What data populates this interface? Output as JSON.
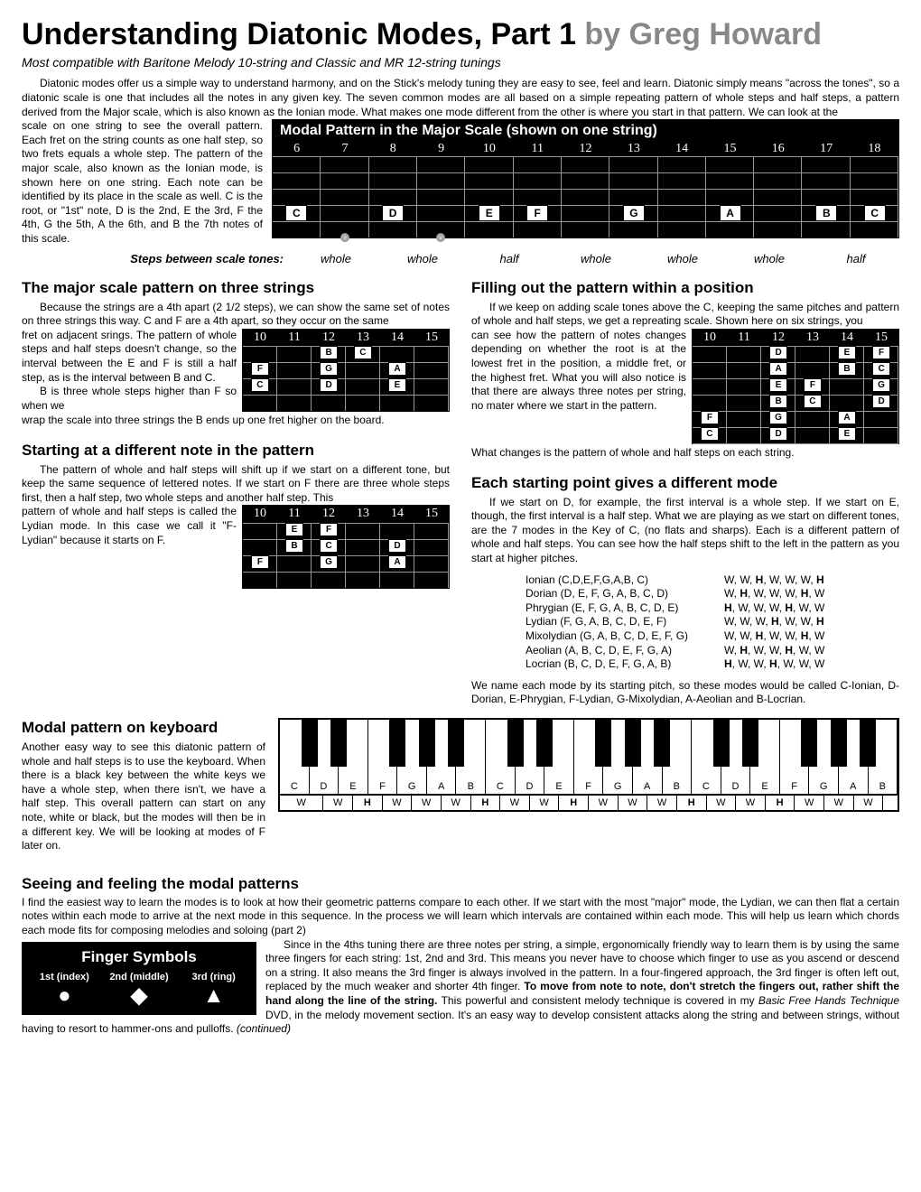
{
  "title_main": "Understanding Diatonic Modes, Part 1 ",
  "title_by": "by Greg Howard",
  "subtitle": "Most compatible with Baritone Melody 10-string and Classic and MR 12-string tunings",
  "intro1": "Diatonic modes offer us a simple way to understand harmony, and on the Stick's melody tuning they are easy to see, feel and learn. Diatonic simply means \"across the tones\", so a diatonic scale is one that includes all the notes in any given key. The seven common modes are all based on a simple repeating pattern of whole steps and half steps, a pattern derived from the Major scale, which is also known as the Ionian mode. What makes one mode different from the other is where you start in that pattern. We can look at the",
  "wrap_left": "scale on one string to see the overall pattern. Each fret on the string counts as one half step, so two frets equals a whole step. The pattern of the major scale, also known as the Ionian mode, is shown here on one string. Each note can be identified by its place in the scale as well. C is the root, or \"1st\" note, D is the 2nd, E the 3rd, F the 4th, G the 5th, A the 6th, and B the 7th notes of this scale.",
  "fret1_title": "Modal Pattern in the Major Scale (shown on one string)",
  "fret1_nums": [
    "6",
    "7",
    "8",
    "9",
    "10",
    "11",
    "12",
    "13",
    "14",
    "15",
    "16",
    "17",
    "18"
  ],
  "fret1_notes": [
    {
      "n": "C",
      "x": 3.8
    },
    {
      "n": "D",
      "x": 19.2
    },
    {
      "n": "E",
      "x": 34.6
    },
    {
      "n": "F",
      "x": 42.3
    },
    {
      "n": "G",
      "x": 57.7
    },
    {
      "n": "A",
      "x": 73.1
    },
    {
      "n": "B",
      "x": 88.5
    },
    {
      "n": "C",
      "x": 96.2
    }
  ],
  "steps_label": "Steps between scale tones:",
  "steps_vals": [
    "whole",
    "whole",
    "half",
    "whole",
    "whole",
    "whole",
    "half"
  ],
  "h_major3": "The major scale pattern on three strings",
  "p_major3a": "Because the strings are a 4th apart (2 1/2 steps), we can show the same set of notes on three strings this way. C and F are a 4th apart, so they occur on the same",
  "p_major3b": "fret on adjacent srings. The pattern of whole steps and half steps doesn't change, so the interval between the E and F is still a half step, as is the interval between B and C.",
  "p_major3c": "B is three whole steps higher than F so when we",
  "p_major3d": "wrap the scale into three strings the B ends up one fret higher on the board.",
  "h_fill": "Filling out the pattern within a position",
  "p_fill1": "If we keep on adding scale tones above the C, keeping the same pitches and pattern of whole and half steps, we get a repreating scale. Shown here on six strings, you",
  "p_fill2": "can see how the pattern of notes changes depending on whether the root is at the lowest fret in the position, a middle fret, or the highest fret. What you will also notice is that there are always three notes per string, no mater where we start in the pattern.",
  "p_fill3": "What changes is the pattern of whole and half steps on each string.",
  "h_start": "Starting at a different note in the pattern",
  "p_start1": "The pattern of whole and half steps will shift up if we start on a different tone, but keep the same sequence of lettered notes. If we start on F there are three whole steps first, then a half step, two whole steps and another half step. This",
  "p_start2": "pattern of whole and half steps is called the Lydian mode. In this case we call it \"F- Lydian\" because it starts on F.",
  "h_each": "Each starting point gives a different mode",
  "p_each1": "If we start on D, for example, the first interval is a whole step. If we start on E, though, the first interval is a half step. What we are playing as we start on different tones, are the 7 modes in the Key of C, (no flats and sharps). Each is a different pattern of whole and half steps. You can see how the half steps shift to the left in the pattern as you start at higher pitches.",
  "modes": [
    {
      "n": "Ionian (C,D,E,F,G,A,B, C)",
      "p": [
        "W",
        "W",
        "<b>H</b>",
        "W",
        "W",
        "W",
        "<b>H</b>"
      ]
    },
    {
      "n": "Dorian (D, E, F, G, A, B, C, D)",
      "p": [
        "W",
        "<b>H</b>",
        "W",
        "W",
        "W",
        "<b>H</b>",
        "W"
      ]
    },
    {
      "n": "Phrygian (E, F, G, A, B, C, D, E)",
      "p": [
        "<b>H</b>",
        "W",
        "W",
        "W",
        "<b>H</b>",
        "W",
        "W"
      ]
    },
    {
      "n": "Lydian (F, G, A, B, C, D, E, F)",
      "p": [
        "W",
        "W",
        "W",
        "<b>H</b>",
        "W",
        "W",
        "<b>H</b>"
      ]
    },
    {
      "n": "Mixolydian (G, A, B, C, D, E, F, G)",
      "p": [
        "W",
        "W",
        "<b>H</b>",
        "W",
        "W",
        "<b>H</b>",
        "W"
      ]
    },
    {
      "n": "Aeolian (A, B, C, D, E, F, G, A)",
      "p": [
        "W",
        "<b>H</b>",
        "W",
        "W",
        "<b>H</b>",
        "W",
        "W"
      ]
    },
    {
      "n": "Locrian (B, C, D, E, F, G, A, B)",
      "p": [
        "<b>H</b>",
        "W",
        "W",
        "<b>H</b>",
        "W",
        "W",
        "W"
      ]
    }
  ],
  "p_each2": "We name each mode by its starting pitch, so these modes would be called C-Ionian, D-Dorian, E-Phrygian, F-Lydian, G-Mixolydian, A-Aeolian and B-Locrian.",
  "h_kb": "Modal pattern on keyboard",
  "p_kb": "Another easy way to see this diatonic pattern of whole and half steps is to use the keyboard. When there is a black key between the white keys we have a whole step, when there isn't, we have a half step. This overall pattern can start on any note, white or black, but the modes will then be in a different key. We will be looking at modes of F later on.",
  "kb_notes": [
    "C",
    "D",
    "E",
    "F",
    "G",
    "A",
    "B",
    "C",
    "D",
    "E",
    "F",
    "G",
    "A",
    "B",
    "C",
    "D",
    "E",
    "F",
    "G",
    "A",
    "B"
  ],
  "kb_black": [
    1,
    2,
    4,
    5,
    6,
    8,
    9,
    11,
    12,
    13,
    15,
    16,
    18,
    19,
    20
  ],
  "kb_steps": [
    "W",
    "W",
    "<b>H</b>",
    "W",
    "W",
    "W",
    "<b>H</b>",
    "W",
    "W",
    "<b>H</b>",
    "W",
    "W",
    "W",
    "<b>H</b>",
    "W",
    "W",
    "<b>H</b>",
    "W",
    "W",
    "W"
  ],
  "h_see": "Seeing and feeling the modal patterns",
  "p_see1": "I find the easiest way to learn the modes is to look at how their geometric patterns compare to each other. If we start with the most \"major\" mode, the Lydian, we can then flat a certain notes within each mode to arrive at the next mode in this sequence. In the process we will learn which intervals are contained within each mode. This will help us learn which chords each mode fits for composing melodies and soloing (part 2)",
  "p_see2": "Since in the 4ths tuning there are three notes per string, a simple, ergonomically friendly way to learn them is by using the same three fingers for each string: 1st, 2nd and 3rd. This means you never have to choose which finger to use as you ascend or descend on a string. It also means the 3rd finger is always involved in the pattern. In a four-fingered approach, the 3rd finger is often left out, replaced by the much weaker and shorter 4th finger. ",
  "p_see2b": "To move from note to note, don't stretch the fingers out, rather shift the hand along the line of the string. ",
  "p_see2c": "This powerful and consistent melody technique is covered in my ",
  "p_see2d": "Basic Free Hands Technique",
  "p_see2e": " DVD, in the melody movement section. It's an easy way to develop consistent attacks along the string and between strings, without having to resort to hammer-ons and pulloffs. ",
  "p_see2f": "(continued)",
  "finger_title": "Finger Symbols",
  "fingers": [
    {
      "l": "1st (index)",
      "s": "●"
    },
    {
      "l": "2nd (middle)",
      "s": "◆"
    },
    {
      "l": "3rd (ring)",
      "s": "▲"
    }
  ],
  "sf2_nums": [
    "10",
    "11",
    "12",
    "13",
    "14",
    "15"
  ],
  "sf2_notes": [
    [
      {
        "n": "B",
        "x": 41.7
      },
      {
        "n": "C",
        "x": 58.3
      }
    ],
    [
      {
        "n": "F",
        "x": 8.3
      },
      {
        "n": "G",
        "x": 41.7
      },
      {
        "n": "A",
        "x": 75
      }
    ],
    [
      {
        "n": "C",
        "x": 8.3
      },
      {
        "n": "D",
        "x": 41.7
      },
      {
        "n": "E",
        "x": 75
      }
    ]
  ],
  "sf3_nums": [
    "10",
    "11",
    "12",
    "13",
    "14",
    "15"
  ],
  "sf3_notes": [
    [
      {
        "n": "E",
        "x": 25
      },
      {
        "n": "F",
        "x": 41.7
      }
    ],
    [
      {
        "n": "B",
        "x": 25
      },
      {
        "n": "C",
        "x": 41.7
      },
      {
        "n": "D",
        "x": 75
      }
    ],
    [
      {
        "n": "F",
        "x": 8.3
      },
      {
        "n": "G",
        "x": 41.7
      },
      {
        "n": "A",
        "x": 75
      }
    ]
  ],
  "sf_fill_nums": [
    "10",
    "11",
    "12",
    "13",
    "14",
    "15"
  ],
  "sf_fill_notes": [
    [
      {
        "n": "D",
        "x": 41.7
      },
      {
        "n": "E",
        "x": 75
      },
      {
        "n": "F",
        "x": 91.7
      }
    ],
    [
      {
        "n": "A",
        "x": 41.7
      },
      {
        "n": "B",
        "x": 75
      },
      {
        "n": "C",
        "x": 91.7
      }
    ],
    [
      {
        "n": "E",
        "x": 41.7
      },
      {
        "n": "F",
        "x": 58.3
      },
      {
        "n": "G",
        "x": 91.7
      }
    ],
    [
      {
        "n": "B",
        "x": 41.7
      },
      {
        "n": "C",
        "x": 58.3
      },
      {
        "n": "D",
        "x": 91.7
      }
    ],
    [
      {
        "n": "F",
        "x": 8.3
      },
      {
        "n": "G",
        "x": 41.7
      },
      {
        "n": "A",
        "x": 75
      }
    ],
    [
      {
        "n": "C",
        "x": 8.3
      },
      {
        "n": "D",
        "x": 41.7
      },
      {
        "n": "E",
        "x": 75
      }
    ]
  ]
}
